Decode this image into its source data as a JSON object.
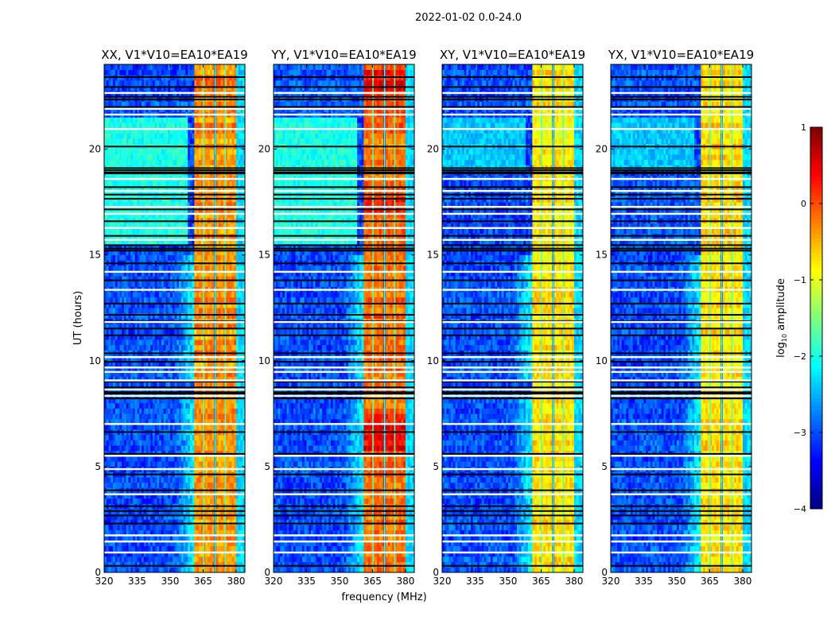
{
  "chart_data": {
    "type": "heatmap",
    "title": "2022-01-02 0.0-24.0",
    "xlabel": "frequency (MHz)",
    "ylabel": "UT (hours)",
    "xlim": [
      320,
      384
    ],
    "ylim": [
      0,
      24
    ],
    "xticks": [
      320,
      335,
      350,
      365,
      380
    ],
    "yticks": [
      0,
      5,
      10,
      15,
      20
    ],
    "colorbar": {
      "label_main": "log",
      "label_sub": "10",
      "label_rest": " amplitude",
      "colormap": "jet",
      "range": [
        -4,
        1
      ],
      "ticks": [
        1,
        0,
        -1,
        -2,
        -3,
        -4
      ],
      "tick_labels": [
        "1",
        "0",
        "−1",
        "−2",
        "−3",
        "−4"
      ]
    },
    "rfi_subbands_mhz": [
      [
        360.6,
        365.0
      ],
      [
        365.5,
        370.3
      ],
      [
        370.8,
        374.9
      ],
      [
        375.4,
        380.0
      ]
    ],
    "band_gap_centers_mhz": [
      365.2,
      370.5,
      375.1
    ],
    "background_level": -3.0,
    "band_edge_level": -2.3,
    "flagged_rows_hours": [
      22.65,
      21.9,
      21.63,
      20.95,
      18.59,
      18.02,
      17.27,
      16.94,
      16.27,
      15.71,
      14.2,
      13.35,
      11.83,
      10.17,
      9.68,
      9.47,
      9.07,
      8.64,
      8.34,
      7.01,
      5.51,
      4.88,
      3.69,
      1.75,
      1.46,
      0.94
    ],
    "dark_rows_hours": [
      23.4,
      22.93,
      22.47,
      22.34,
      21.99,
      20.12,
      19.1,
      19.0,
      18.9,
      18.85,
      18.2,
      17.85,
      17.65,
      17.15,
      16.59,
      15.9,
      15.46,
      15.3,
      15.2,
      14.6,
      13.8,
      12.7,
      12.17,
      11.87,
      11.52,
      11.2,
      10.35,
      9.95,
      9.01,
      8.74,
      8.51,
      8.45,
      8.22,
      6.63,
      5.6,
      4.63,
      3.88,
      3.13,
      2.9,
      2.69,
      2.31,
      0.31
    ],
    "panels": [
      {
        "title": "XX, V1*V10=EA10*EA19",
        "band_level": -0.35,
        "low_freq_enhanced_hours": [
          15.5,
          21.5
        ],
        "low_freq_level": -2.0
      },
      {
        "title": "YY, V1*V10=EA10*EA19",
        "band_level": -0.15,
        "low_freq_enhanced_hours": [
          15.5,
          21.5
        ],
        "low_freq_level": -2.0
      },
      {
        "title": "XY, V1*V10=EA10*EA19",
        "band_level": -0.75,
        "low_freq_enhanced_hours": [
          19.0,
          21.5
        ],
        "low_freq_level": -2.4
      },
      {
        "title": "YX, V1*V10=EA10*EA19",
        "band_level": -0.75,
        "low_freq_enhanced_hours": [
          19.0,
          21.5
        ],
        "low_freq_level": -2.4
      }
    ]
  }
}
